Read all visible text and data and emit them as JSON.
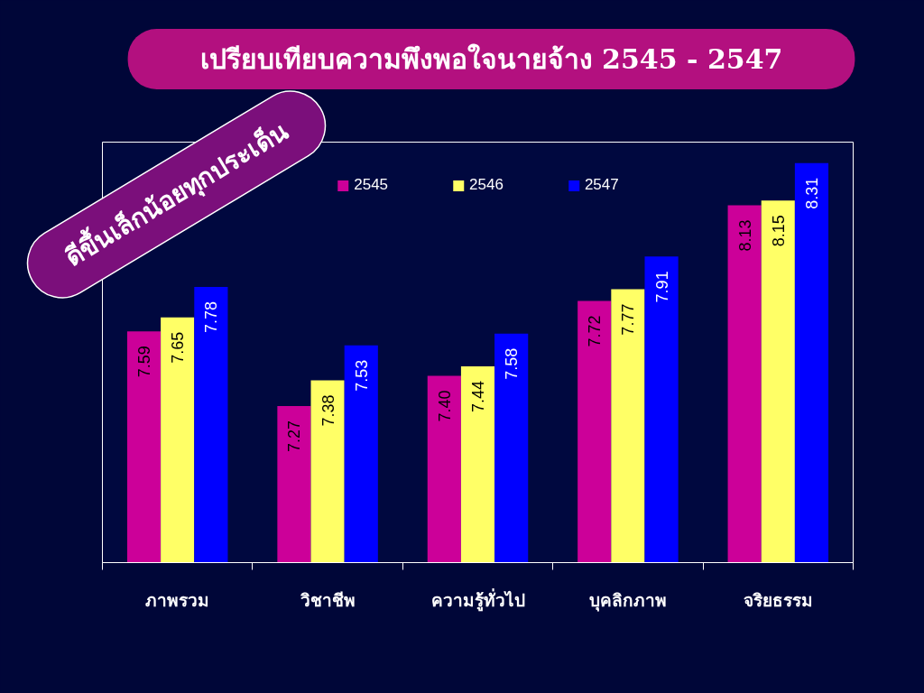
{
  "chart_data": {
    "type": "bar",
    "title": "เปรียบเทียบความพึงพอใจนายจ้าง 2545 - 2547",
    "annotations": [
      "ดีขึ้นเล็กน้อยทุกประเด็น"
    ],
    "categories": [
      "ภาพรวม",
      "วิชาชีพ",
      "ความรู้ทั่วไป",
      "บุคลิกภาพ",
      "จริยธรรม"
    ],
    "series": [
      {
        "name": "2545",
        "color": "#cc0099",
        "values": [
          7.59,
          7.27,
          7.4,
          7.72,
          8.13
        ],
        "value_labels": [
          "7.59",
          "7.27",
          "7.40",
          "7.72",
          "8.13"
        ]
      },
      {
        "name": "2546",
        "color": "#ffff66",
        "values": [
          7.65,
          7.38,
          7.44,
          7.77,
          8.15
        ],
        "value_labels": [
          "7.65",
          "7.38",
          "7.44",
          "7.77",
          "8.15"
        ]
      },
      {
        "name": "2547",
        "color": "#0000ff",
        "values": [
          7.78,
          7.53,
          7.58,
          7.91,
          8.31
        ],
        "value_labels": [
          "7.78",
          "7.53",
          "7.58",
          "7.91",
          "8.31"
        ]
      }
    ],
    "ylim": [
      6.6,
      8.4
    ],
    "tick_labels": "x",
    "legend": "top"
  }
}
